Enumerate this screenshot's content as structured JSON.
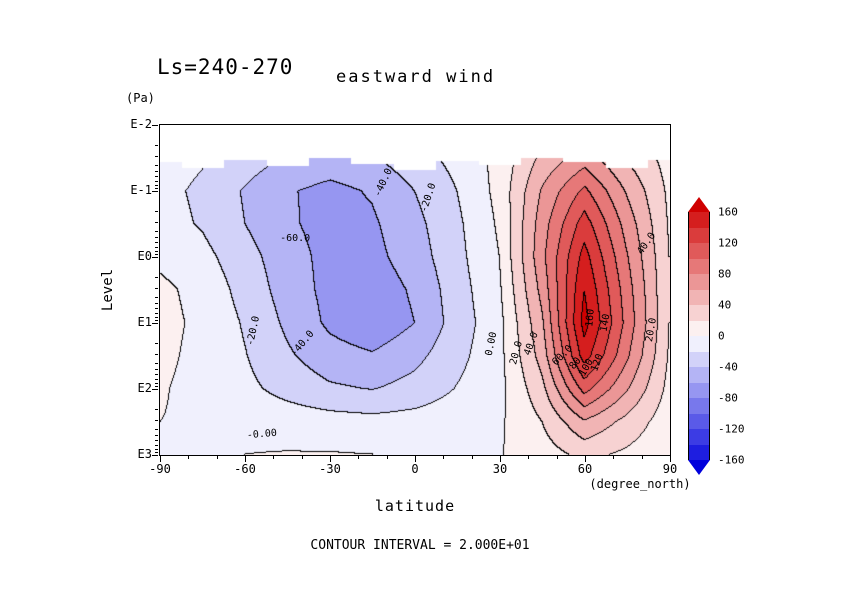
{
  "title": {
    "ls": "Ls=240-270",
    "variable": "eastward wind"
  },
  "axes": {
    "y_unit": "(Pa)",
    "y_label": "Level",
    "y_ticks": [
      "E-2",
      "E-1",
      "E0",
      "E1",
      "E2",
      "E3"
    ],
    "x_ticks": [
      "-90",
      "-60",
      "-30",
      "0",
      "30",
      "60",
      "90"
    ],
    "x_label": "latitude",
    "x_unit": "(degree_north)"
  },
  "footer": {
    "contour_interval_label": "CONTOUR INTERVAL = 2.000E+01"
  },
  "colorbar": {
    "labels": [
      "160",
      "120",
      "80",
      "40",
      "0",
      "-40",
      "-80",
      "-120",
      "-160"
    ]
  },
  "chart_data": {
    "type": "heatmap",
    "title": "Ls=240-270 eastward wind",
    "xlabel": "latitude (degree_north)",
    "ylabel": "Level (Pa), log scale E-2 to E3",
    "xlim": [
      -90,
      90
    ],
    "ylim_log10_pa": [
      -2,
      3
    ],
    "grid": false,
    "contour_interval": 20,
    "value_range": [
      -160,
      160
    ],
    "x_latitude": [
      -90,
      -75,
      -60,
      -45,
      -30,
      -15,
      0,
      15,
      30,
      45,
      60,
      75,
      90
    ],
    "y_log10_pressure_pa": [
      -1.5,
      -1.0,
      -0.5,
      0.0,
      0.5,
      1.0,
      1.5,
      2.0,
      2.5,
      3.0
    ],
    "values_m_per_s": [
      [
        -10,
        -18,
        -30,
        -42,
        -48,
        -42,
        -28,
        -14,
        6,
        45,
        70,
        38,
        12
      ],
      [
        -14,
        -24,
        -42,
        -58,
        -66,
        -58,
        -40,
        -20,
        6,
        62,
        105,
        58,
        16
      ],
      [
        -12,
        -22,
        -40,
        -57,
        -67,
        -63,
        -46,
        -24,
        3,
        70,
        130,
        72,
        18
      ],
      [
        -5,
        -14,
        -32,
        -52,
        -66,
        -66,
        -50,
        -26,
        0,
        74,
        148,
        82,
        20
      ],
      [
        5,
        -7,
        -27,
        -49,
        -66,
        -72,
        -57,
        -29,
        -3,
        66,
        160,
        90,
        20
      ],
      [
        7,
        -5,
        -22,
        -44,
        -64,
        -75,
        -60,
        -31,
        -6,
        56,
        168,
        94,
        20
      ],
      [
        5,
        -6,
        -19,
        -37,
        -52,
        -58,
        -46,
        -26,
        -6,
        48,
        150,
        84,
        18
      ],
      [
        2,
        -7,
        -15,
        -27,
        -37,
        -41,
        -33,
        -19,
        -6,
        34,
        108,
        62,
        14
      ],
      [
        0,
        -3,
        -6,
        -9,
        -12,
        -14,
        -12,
        -8,
        -3,
        20,
        58,
        34,
        8
      ],
      [
        -1,
        -1,
        0,
        1,
        1,
        0,
        -1,
        -2,
        -1,
        10,
        26,
        16,
        4
      ]
    ],
    "top_boundary_log10_pa": [
      -1.45,
      -1.35,
      -1.48,
      -1.38,
      -1.5,
      -1.42,
      -1.33,
      -1.46,
      -1.4,
      -1.5,
      -1.44,
      -1.36,
      -1.47
    ],
    "colors": {
      "positive_max": "#cf0000",
      "negative_max": "#0000dc",
      "zero": "#ffffff",
      "contour_line": "#000000"
    },
    "contour_labels": [
      {
        "text": "-60.0",
        "fx": 0.265,
        "fy": 0.345,
        "angle": 0
      },
      {
        "text": "-40.0",
        "fx": 0.44,
        "fy": 0.175,
        "angle": -65
      },
      {
        "text": "-20.0",
        "fx": 0.527,
        "fy": 0.22,
        "angle": -72
      },
      {
        "text": "-20.0",
        "fx": 0.185,
        "fy": 0.625,
        "angle": -78
      },
      {
        "text": "-40.0",
        "fx": 0.28,
        "fy": 0.665,
        "angle": -50
      },
      {
        "text": "0.00",
        "fx": 0.65,
        "fy": 0.665,
        "angle": -78
      },
      {
        "text": "20.0",
        "fx": 0.7,
        "fy": 0.69,
        "angle": -75
      },
      {
        "text": "40.0",
        "fx": 0.73,
        "fy": 0.665,
        "angle": -70
      },
      {
        "text": "-0.00",
        "fx": 0.2,
        "fy": 0.94,
        "angle": -5
      },
      {
        "text": "40.0",
        "fx": 0.955,
        "fy": 0.36,
        "angle": -55
      },
      {
        "text": "20.0",
        "fx": 0.965,
        "fy": 0.62,
        "angle": -80
      },
      {
        "text": "160",
        "fx": 0.845,
        "fy": 0.585,
        "angle": -85
      },
      {
        "text": "140",
        "fx": 0.875,
        "fy": 0.6,
        "angle": -80
      },
      {
        "text": "60.0",
        "fx": 0.79,
        "fy": 0.7,
        "angle": -45
      },
      {
        "text": "80",
        "fx": 0.815,
        "fy": 0.725,
        "angle": -50
      },
      {
        "text": "100",
        "fx": 0.838,
        "fy": 0.735,
        "angle": -60
      },
      {
        "text": "120",
        "fx": 0.858,
        "fy": 0.72,
        "angle": -70
      }
    ]
  }
}
